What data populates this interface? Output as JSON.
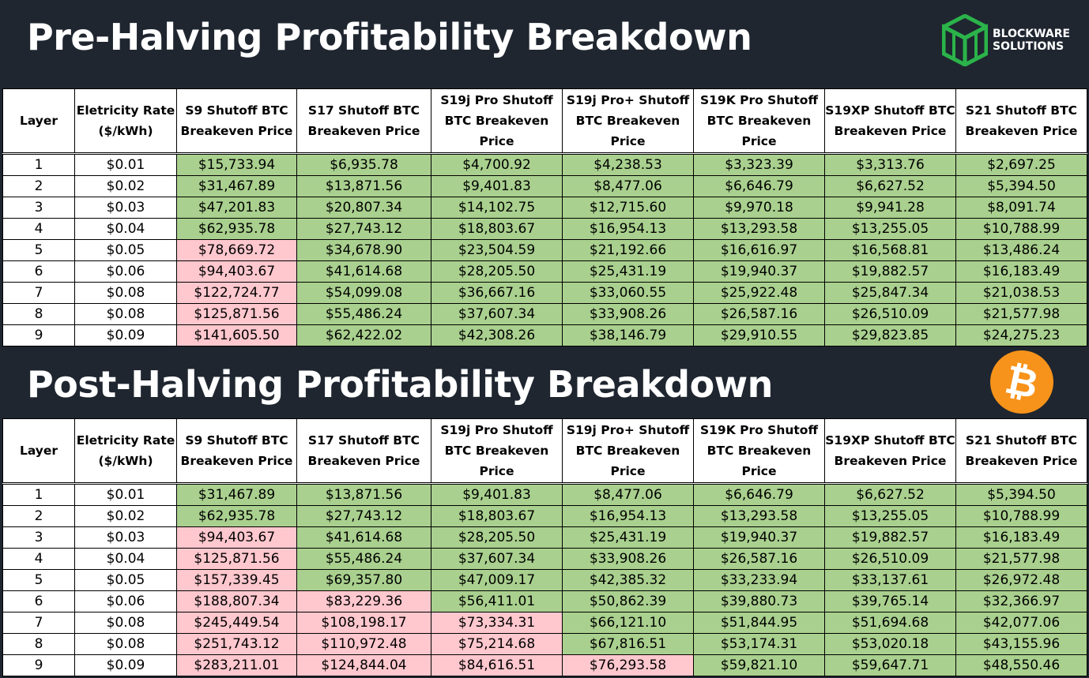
{
  "colors": {
    "background": "#1f2630",
    "profitable": "#a9d08e",
    "unprofitable": "#ffc7ce",
    "bitcoin_orange": "#f7931a",
    "blockware_green": "#2bb34a"
  },
  "logo": {
    "icon": "blockware-cube-logo-icon",
    "line1": "BLOCKWARE",
    "line2": "SOLUTIONS"
  },
  "bitcoin_logo": {
    "icon": "bitcoin-logo-icon",
    "glyph": "₿"
  },
  "columns": [
    "Layer",
    "Eletricity Rate ($/kWh)",
    "S9 Shutoff BTC Breakeven Price",
    "S17 Shutoff BTC Breakeven Price",
    "S19j Pro Shutoff BTC Breakeven Price",
    "S19j Pro+ Shutoff BTC Breakeven Price",
    "S19K Pro Shutoff BTC Breakeven Price",
    "S19XP Shutoff BTC Breakeven Price",
    "S21 Shutoff BTC Breakeven Price"
  ],
  "pre_halving": {
    "title": "Pre-Halving Profitability Breakdown",
    "rows": [
      [
        "1",
        "$0.01",
        "$15,733.94",
        "$6,935.78",
        "$4,700.92",
        "$4,238.53",
        "$3,323.39",
        "$3,313.76",
        "$2,697.25"
      ],
      [
        "2",
        "$0.02",
        "$31,467.89",
        "$13,871.56",
        "$9,401.83",
        "$8,477.06",
        "$6,646.79",
        "$6,627.52",
        "$5,394.50"
      ],
      [
        "3",
        "$0.03",
        "$47,201.83",
        "$20,807.34",
        "$14,102.75",
        "$12,715.60",
        "$9,970.18",
        "$9,941.28",
        "$8,091.74"
      ],
      [
        "4",
        "$0.04",
        "$62,935.78",
        "$27,743.12",
        "$18,803.67",
        "$16,954.13",
        "$13,293.58",
        "$13,255.05",
        "$10,788.99"
      ],
      [
        "5",
        "$0.05",
        "$78,669.72",
        "$34,678.90",
        "$23,504.59",
        "$21,192.66",
        "$16,616.97",
        "$16,568.81",
        "$13,486.24"
      ],
      [
        "6",
        "$0.06",
        "$94,403.67",
        "$41,614.68",
        "$28,205.50",
        "$25,431.19",
        "$19,940.37",
        "$19,882.57",
        "$16,183.49"
      ],
      [
        "7",
        "$0.08",
        "$122,724.77",
        "$54,099.08",
        "$36,667.16",
        "$33,060.55",
        "$25,922.48",
        "$25,847.34",
        "$21,038.53"
      ],
      [
        "8",
        "$0.08",
        "$125,871.56",
        "$55,486.24",
        "$37,607.34",
        "$33,908.26",
        "$26,587.16",
        "$26,510.09",
        "$21,577.98"
      ],
      [
        "9",
        "$0.09",
        "$141,605.50",
        "$62,422.02",
        "$42,308.26",
        "$38,146.79",
        "$29,910.55",
        "$29,823.85",
        "$24,275.23"
      ]
    ],
    "unprofitable_cells": [
      [
        4,
        2
      ],
      [
        5,
        2
      ],
      [
        6,
        2
      ],
      [
        7,
        2
      ],
      [
        8,
        2
      ]
    ]
  },
  "post_halving": {
    "title": "Post-Halving Profitability Breakdown",
    "rows": [
      [
        "1",
        "$0.01",
        "$31,467.89",
        "$13,871.56",
        "$9,401.83",
        "$8,477.06",
        "$6,646.79",
        "$6,627.52",
        "$5,394.50"
      ],
      [
        "2",
        "$0.02",
        "$62,935.78",
        "$27,743.12",
        "$18,803.67",
        "$16,954.13",
        "$13,293.58",
        "$13,255.05",
        "$10,788.99"
      ],
      [
        "3",
        "$0.03",
        "$94,403.67",
        "$41,614.68",
        "$28,205.50",
        "$25,431.19",
        "$19,940.37",
        "$19,882.57",
        "$16,183.49"
      ],
      [
        "4",
        "$0.04",
        "$125,871.56",
        "$55,486.24",
        "$37,607.34",
        "$33,908.26",
        "$26,587.16",
        "$26,510.09",
        "$21,577.98"
      ],
      [
        "5",
        "$0.05",
        "$157,339.45",
        "$69,357.80",
        "$47,009.17",
        "$42,385.32",
        "$33,233.94",
        "$33,137.61",
        "$26,972.48"
      ],
      [
        "6",
        "$0.06",
        "$188,807.34",
        "$83,229.36",
        "$56,411.01",
        "$50,862.39",
        "$39,880.73",
        "$39,765.14",
        "$32,366.97"
      ],
      [
        "7",
        "$0.08",
        "$245,449.54",
        "$108,198.17",
        "$73,334.31",
        "$66,121.10",
        "$51,844.95",
        "$51,694.68",
        "$42,077.06"
      ],
      [
        "8",
        "$0.08",
        "$251,743.12",
        "$110,972.48",
        "$75,214.68",
        "$67,816.51",
        "$53,174.31",
        "$53,020.18",
        "$43,155.96"
      ],
      [
        "9",
        "$0.09",
        "$283,211.01",
        "$124,844.04",
        "$84,616.51",
        "$76,293.58",
        "$59,821.10",
        "$59,647.71",
        "$48,550.46"
      ]
    ],
    "unprofitable_cells": [
      [
        2,
        2
      ],
      [
        3,
        2
      ],
      [
        4,
        2
      ],
      [
        5,
        2
      ],
      [
        6,
        2
      ],
      [
        7,
        2
      ],
      [
        8,
        2
      ],
      [
        5,
        3
      ],
      [
        6,
        3
      ],
      [
        7,
        3
      ],
      [
        8,
        3
      ],
      [
        6,
        4
      ],
      [
        7,
        4
      ],
      [
        8,
        4
      ],
      [
        8,
        5
      ]
    ]
  }
}
